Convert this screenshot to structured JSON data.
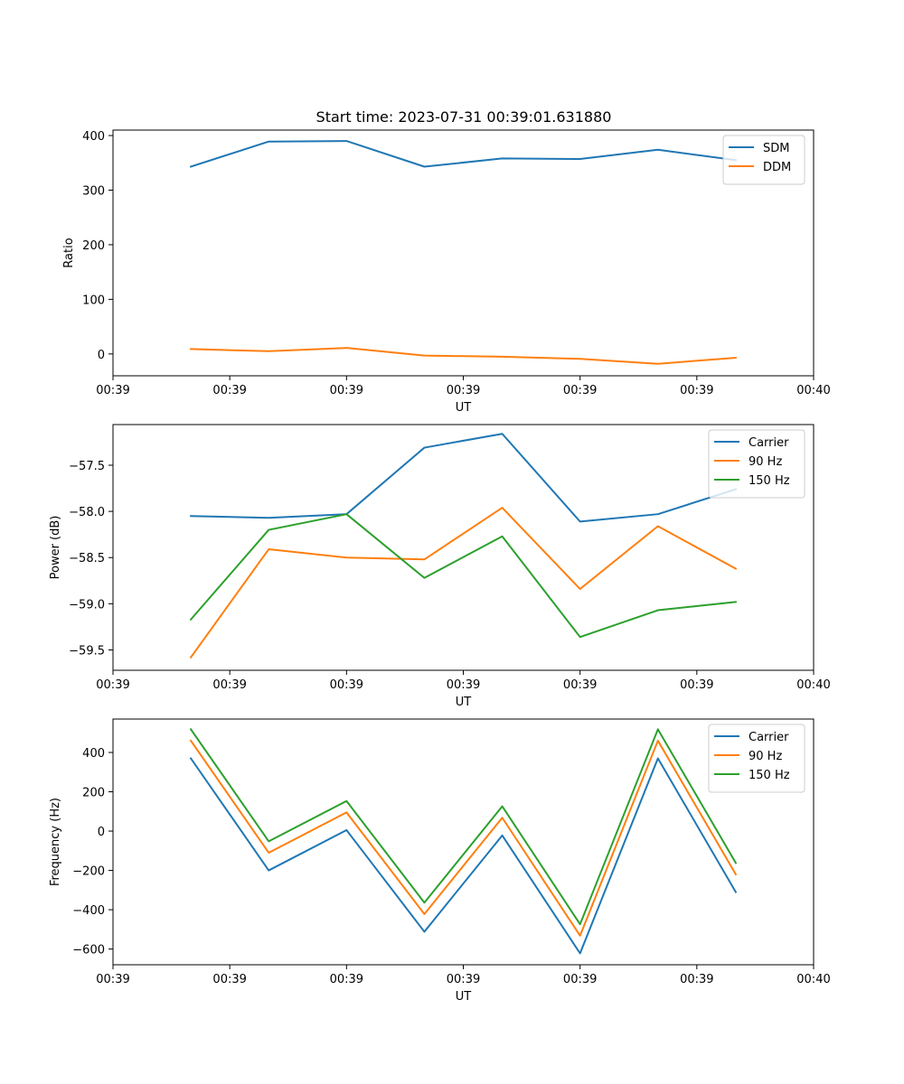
{
  "figure": {
    "title": "Start time: 2023-07-31 00:39:01.631880"
  },
  "chart_data": [
    {
      "type": "line",
      "title": "Start time: 2023-07-31 00:39:01.631880",
      "xlabel": "UT",
      "ylabel": "Ratio",
      "x": [
        1,
        2,
        3,
        4,
        5,
        6,
        7,
        8
      ],
      "xlim": [
        0,
        9
      ],
      "x_ticks": [
        0,
        1.5,
        3,
        4.5,
        6,
        7.5,
        9
      ],
      "x_tick_labels": [
        "00:39",
        "00:39",
        "00:39",
        "00:39",
        "00:39",
        "00:39",
        "00:40"
      ],
      "ylim": [
        -40,
        410
      ],
      "y_ticks": [
        0,
        100,
        200,
        300,
        400
      ],
      "y_tick_labels": [
        "0",
        "100",
        "200",
        "300",
        "400"
      ],
      "legend_position": "upper-right",
      "series": [
        {
          "name": "SDM",
          "color": "#1f77b4",
          "values": [
            343,
            389,
            390,
            343,
            358,
            357,
            374,
            355
          ]
        },
        {
          "name": "DDM",
          "color": "#ff7f0e",
          "values": [
            9,
            5,
            11,
            -3,
            -5,
            -9,
            -18,
            -7
          ]
        }
      ]
    },
    {
      "type": "line",
      "xlabel": "UT",
      "ylabel": "Power (dB)",
      "x": [
        1,
        2,
        3,
        4,
        5,
        6,
        7,
        8
      ],
      "xlim": [
        0,
        9
      ],
      "x_ticks": [
        0,
        1.5,
        3,
        4.5,
        6,
        7.5,
        9
      ],
      "x_tick_labels": [
        "00:39",
        "00:39",
        "00:39",
        "00:39",
        "00:39",
        "00:39",
        "00:40"
      ],
      "ylim": [
        -59.72,
        -57.06
      ],
      "y_ticks": [
        -59.5,
        -59.0,
        -58.5,
        -58.0,
        -57.5
      ],
      "y_tick_labels": [
        "−59.5",
        "−59.0",
        "−58.5",
        "−58.0",
        "−57.5"
      ],
      "legend_position": "upper-right",
      "series": [
        {
          "name": "Carrier",
          "color": "#1f77b4",
          "values": [
            -58.05,
            -58.07,
            -58.03,
            -57.31,
            -57.16,
            -58.11,
            -58.03,
            -57.76
          ]
        },
        {
          "name": "90 Hz",
          "color": "#ff7f0e",
          "values": [
            -59.58,
            -58.41,
            -58.5,
            -58.52,
            -57.96,
            -58.84,
            -58.16,
            -58.62
          ]
        },
        {
          "name": "150 Hz",
          "color": "#2ca02c",
          "values": [
            -59.17,
            -58.2,
            -58.03,
            -58.72,
            -58.27,
            -59.36,
            -59.07,
            -58.98
          ]
        }
      ]
    },
    {
      "type": "line",
      "xlabel": "UT",
      "ylabel": "Frequency (Hz)",
      "x": [
        1,
        2,
        3,
        4,
        5,
        6,
        7,
        8
      ],
      "xlim": [
        0,
        9
      ],
      "x_ticks": [
        0,
        1.5,
        3,
        4.5,
        6,
        7.5,
        9
      ],
      "x_tick_labels": [
        "00:39",
        "00:39",
        "00:39",
        "00:39",
        "00:39",
        "00:39",
        "00:40"
      ],
      "ylim": [
        -680,
        570
      ],
      "y_ticks": [
        -600,
        -400,
        -200,
        0,
        200,
        400
      ],
      "y_tick_labels": [
        "−600",
        "−400",
        "−200",
        "0",
        "200",
        "400"
      ],
      "legend_position": "upper-right",
      "series": [
        {
          "name": "Carrier",
          "color": "#1f77b4",
          "values": [
            370,
            -200,
            5,
            -512,
            -22,
            -622,
            370,
            -310
          ]
        },
        {
          "name": "90 Hz",
          "color": "#ff7f0e",
          "values": [
            460,
            -110,
            95,
            -422,
            68,
            -532,
            460,
            -220
          ]
        },
        {
          "name": "150 Hz",
          "color": "#2ca02c",
          "values": [
            518,
            -52,
            153,
            -364,
            126,
            -474,
            518,
            -162
          ]
        }
      ]
    }
  ]
}
